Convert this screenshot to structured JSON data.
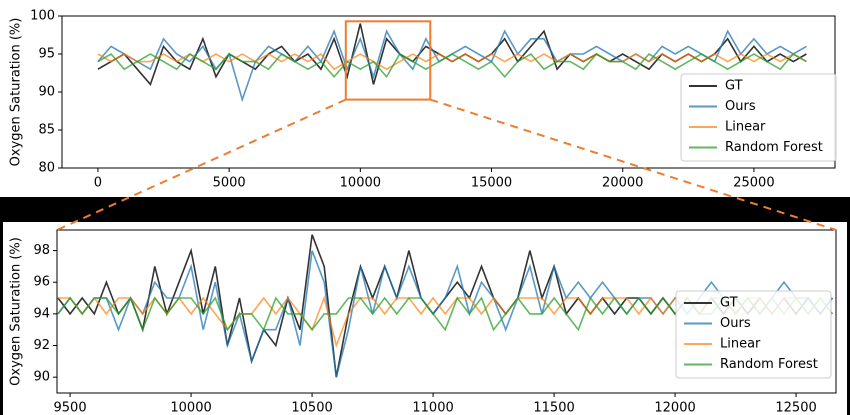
{
  "chart_data": [
    {
      "type": "line",
      "ylabel": "Oxygen Saturation (%)",
      "x": [
        0,
        500,
        1000,
        1500,
        2000,
        2500,
        3000,
        3500,
        4000,
        4500,
        5000,
        5500,
        6000,
        6500,
        7000,
        7500,
        8000,
        8500,
        9000,
        9500,
        10000,
        10500,
        11000,
        11500,
        12000,
        12500,
        13000,
        13500,
        14000,
        14500,
        15000,
        15500,
        16000,
        16500,
        17000,
        17500,
        18000,
        18500,
        19000,
        19500,
        20000,
        20500,
        21000,
        21500,
        22000,
        22500,
        23000,
        23500,
        24000,
        24500,
        25000,
        25500,
        26000,
        26500,
        27000
      ],
      "series": [
        {
          "name": "GT",
          "color": "#333333",
          "values": [
            93,
            94,
            95,
            93,
            91,
            96,
            94,
            93,
            97,
            92,
            95,
            94,
            93,
            95,
            96,
            94,
            95,
            93,
            97,
            92,
            99,
            91,
            97,
            95,
            94,
            96,
            95,
            94,
            95,
            94,
            95,
            97,
            94,
            96,
            98,
            93,
            95,
            94,
            95,
            94,
            95,
            94,
            93,
            95,
            94,
            95,
            94,
            95,
            97,
            94,
            96,
            94,
            95,
            94,
            95
          ]
        },
        {
          "name": "Ours",
          "color": "#1f77b4",
          "values": [
            94,
            96,
            95,
            94,
            93,
            97,
            95,
            94,
            96,
            93,
            95,
            89,
            94,
            96,
            95,
            94,
            96,
            94,
            98,
            93,
            97,
            92,
            98,
            95,
            93,
            97,
            94,
            95,
            96,
            95,
            94,
            98,
            95,
            97,
            97,
            94,
            95,
            95,
            96,
            95,
            94,
            95,
            94,
            96,
            95,
            96,
            95,
            94,
            98,
            95,
            97,
            95,
            96,
            95,
            96
          ]
        },
        {
          "name": "Linear",
          "color": "#ff7f0e",
          "values": [
            95,
            94,
            95,
            94,
            94,
            95,
            94,
            95,
            94,
            95,
            94,
            95,
            94,
            95,
            94,
            95,
            94,
            95,
            93,
            94,
            95,
            94,
            93,
            94,
            95,
            94,
            95,
            94,
            95,
            94,
            95,
            94,
            95,
            94,
            95,
            94,
            95,
            94,
            95,
            94,
            94,
            95,
            94,
            95,
            94,
            95,
            94,
            95,
            94,
            95,
            94,
            95,
            94,
            95,
            94
          ]
        },
        {
          "name": "Random Forest",
          "color": "#2ca02c",
          "values": [
            94,
            95,
            93,
            94,
            95,
            94,
            93,
            95,
            94,
            93,
            95,
            94,
            94,
            93,
            95,
            94,
            93,
            94,
            92,
            94,
            93,
            94,
            92,
            95,
            94,
            93,
            94,
            95,
            94,
            93,
            94,
            92,
            94,
            95,
            93,
            94,
            94,
            93,
            95,
            94,
            94,
            93,
            95,
            94,
            93,
            94,
            95,
            94,
            93,
            94,
            95,
            94,
            93,
            95,
            94
          ]
        }
      ],
      "xlim": [
        -1370,
        28090
      ],
      "ylim": [
        80,
        100
      ],
      "xticks": [
        0,
        5000,
        10000,
        15000,
        20000,
        25000
      ],
      "yticks": [
        80,
        85,
        90,
        95,
        100
      ],
      "legend": "lower right"
    },
    {
      "type": "line",
      "ylabel": "Oxygen Saturation (%)",
      "x": [
        9450,
        9500,
        9550,
        9600,
        9650,
        9700,
        9750,
        9800,
        9850,
        9900,
        9950,
        10000,
        10050,
        10100,
        10150,
        10200,
        10250,
        10300,
        10350,
        10400,
        10450,
        10500,
        10550,
        10600,
        10650,
        10700,
        10750,
        10800,
        10850,
        10900,
        10950,
        11000,
        11050,
        11100,
        11150,
        11200,
        11250,
        11300,
        11350,
        11400,
        11450,
        11500,
        11550,
        11600,
        11650,
        11700,
        11750,
        11800,
        11850,
        11900,
        11950,
        12000,
        12050,
        12100,
        12150,
        12200,
        12250,
        12300,
        12350,
        12400,
        12450,
        12500,
        12550,
        12600,
        12650
      ],
      "series": [
        {
          "name": "GT",
          "color": "#333333",
          "values": [
            95,
            94,
            95,
            94,
            96,
            94,
            95,
            93,
            97,
            94,
            96,
            98,
            94,
            97,
            92,
            95,
            91,
            93,
            92,
            95,
            93,
            99,
            97,
            90,
            94,
            97,
            95,
            97,
            95,
            98,
            95,
            94,
            95,
            96,
            95,
            97,
            95,
            94,
            95,
            98,
            95,
            97,
            94,
            95,
            94,
            95,
            94,
            95,
            95,
            94,
            95,
            94,
            95,
            94,
            95,
            94,
            95,
            94,
            95,
            94,
            95,
            94,
            95,
            94,
            95
          ]
        },
        {
          "name": "Ours",
          "color": "#1f77b4",
          "values": [
            94,
            95,
            94,
            95,
            95,
            93,
            95,
            94,
            96,
            95,
            95,
            97,
            93,
            96,
            92,
            94,
            91,
            93,
            93,
            95,
            92,
            98,
            96,
            90,
            93,
            97,
            94,
            97,
            95,
            97,
            95,
            94,
            95,
            97,
            94,
            96,
            95,
            93,
            95,
            97,
            94,
            97,
            95,
            96,
            95,
            96,
            95,
            94,
            95,
            95,
            94,
            95,
            94,
            95,
            96,
            95,
            94,
            95,
            94,
            95,
            96,
            95,
            95,
            94,
            95
          ]
        },
        {
          "name": "Linear",
          "color": "#ff7f0e",
          "values": [
            95,
            95,
            94,
            95,
            94,
            95,
            95,
            94,
            95,
            94,
            95,
            94,
            95,
            94,
            93,
            94,
            94,
            95,
            94,
            95,
            94,
            93,
            95,
            92,
            94,
            95,
            95,
            94,
            95,
            95,
            94,
            95,
            94,
            95,
            95,
            94,
            95,
            94,
            95,
            95,
            95,
            94,
            95,
            95,
            94,
            95,
            95,
            95,
            94,
            95,
            94,
            95,
            95,
            94,
            95,
            95,
            94,
            95,
            95,
            94,
            95,
            95,
            94,
            95,
            94
          ]
        },
        {
          "name": "Random Forest",
          "color": "#2ca02c",
          "values": [
            94,
            95,
            94,
            95,
            95,
            94,
            95,
            93,
            95,
            94,
            95,
            95,
            94,
            95,
            93,
            94,
            94,
            93,
            95,
            94,
            94,
            93,
            94,
            94,
            95,
            95,
            94,
            95,
            94,
            95,
            95,
            94,
            93,
            95,
            94,
            95,
            93,
            94,
            95,
            94,
            94,
            95,
            94,
            93,
            95,
            94,
            95,
            94,
            95,
            94,
            95,
            94,
            95,
            94,
            94,
            95,
            94,
            95,
            94,
            95,
            94,
            95,
            94,
            95,
            94
          ]
        }
      ],
      "xlim": [
        9446,
        12665
      ],
      "ylim": [
        89,
        99.3
      ],
      "xticks": [
        9500,
        10000,
        10500,
        11000,
        11500,
        12000,
        12500
      ],
      "yticks": [
        90,
        92,
        94,
        96,
        98
      ],
      "legend": "lower right"
    }
  ]
}
